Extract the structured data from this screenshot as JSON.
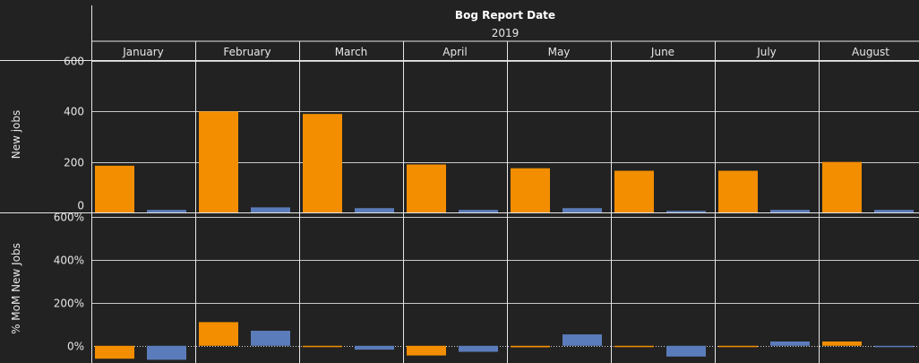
{
  "chart_data": {
    "type": "bar",
    "title": "Bog Report Date",
    "year": "2019",
    "categories": [
      "January",
      "February",
      "March",
      "April",
      "May",
      "June",
      "July",
      "August"
    ],
    "colors": {
      "series_a": "#f28e00",
      "series_b": "#5b7cba",
      "background": "#222222",
      "grid": "#e6e6e6"
    },
    "panels": [
      {
        "ylabel": "New jobs",
        "ylim": [
          0,
          600
        ],
        "ticks": [
          0,
          200,
          400,
          600
        ],
        "tick_labels": [
          "0",
          "200",
          "400",
          "600"
        ],
        "series": [
          {
            "values": [
              185,
              400,
              390,
              190,
              175,
              165,
              165,
              200
            ]
          },
          {
            "values": [
              10,
              20,
              17,
              10,
              17,
              6,
              10,
              10
            ]
          }
        ]
      },
      {
        "ylabel": "% MoM New Jobs",
        "ylim": [
          -0.8,
          6.2
        ],
        "ticks": [
          0,
          2,
          4,
          6
        ],
        "tick_labels": [
          "0%",
          "200%",
          "400%",
          "600%"
        ],
        "series": [
          {
            "values": [
              -0.6,
              1.1,
              -0.02,
              -0.45,
              -0.07,
              -0.02,
              -0.02,
              0.2
            ]
          },
          {
            "values": [
              -0.65,
              0.7,
              -0.18,
              -0.28,
              0.53,
              -0.5,
              0.2,
              -0.05
            ]
          }
        ]
      }
    ],
    "grid": true,
    "legend": "none"
  }
}
